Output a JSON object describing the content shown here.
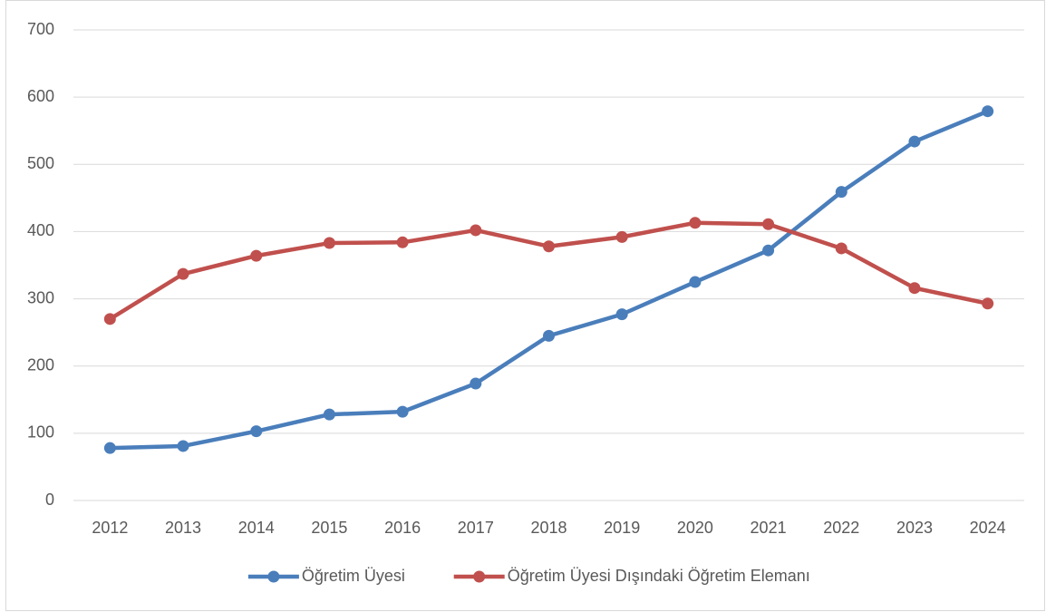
{
  "chart_data": {
    "type": "line",
    "categories": [
      "2012",
      "2013",
      "2014",
      "2015",
      "2016",
      "2017",
      "2018",
      "2019",
      "2020",
      "2021",
      "2022",
      "2023",
      "2024"
    ],
    "series": [
      {
        "name": "Öğretim Üyesi",
        "color": "#4a7ebb",
        "values": [
          78,
          81,
          103,
          128,
          132,
          174,
          245,
          277,
          325,
          372,
          459,
          534,
          579
        ]
      },
      {
        "name": "Öğretim Üyesi Dışındaki Öğretim Elemanı",
        "color": "#c0504d",
        "values": [
          270,
          337,
          364,
          383,
          384,
          402,
          378,
          392,
          413,
          411,
          375,
          316,
          293
        ]
      }
    ],
    "ylim": [
      0,
      700
    ],
    "yticks": [
      0,
      100,
      200,
      300,
      400,
      500,
      600,
      700
    ],
    "grid": true,
    "legend": "bottom"
  }
}
